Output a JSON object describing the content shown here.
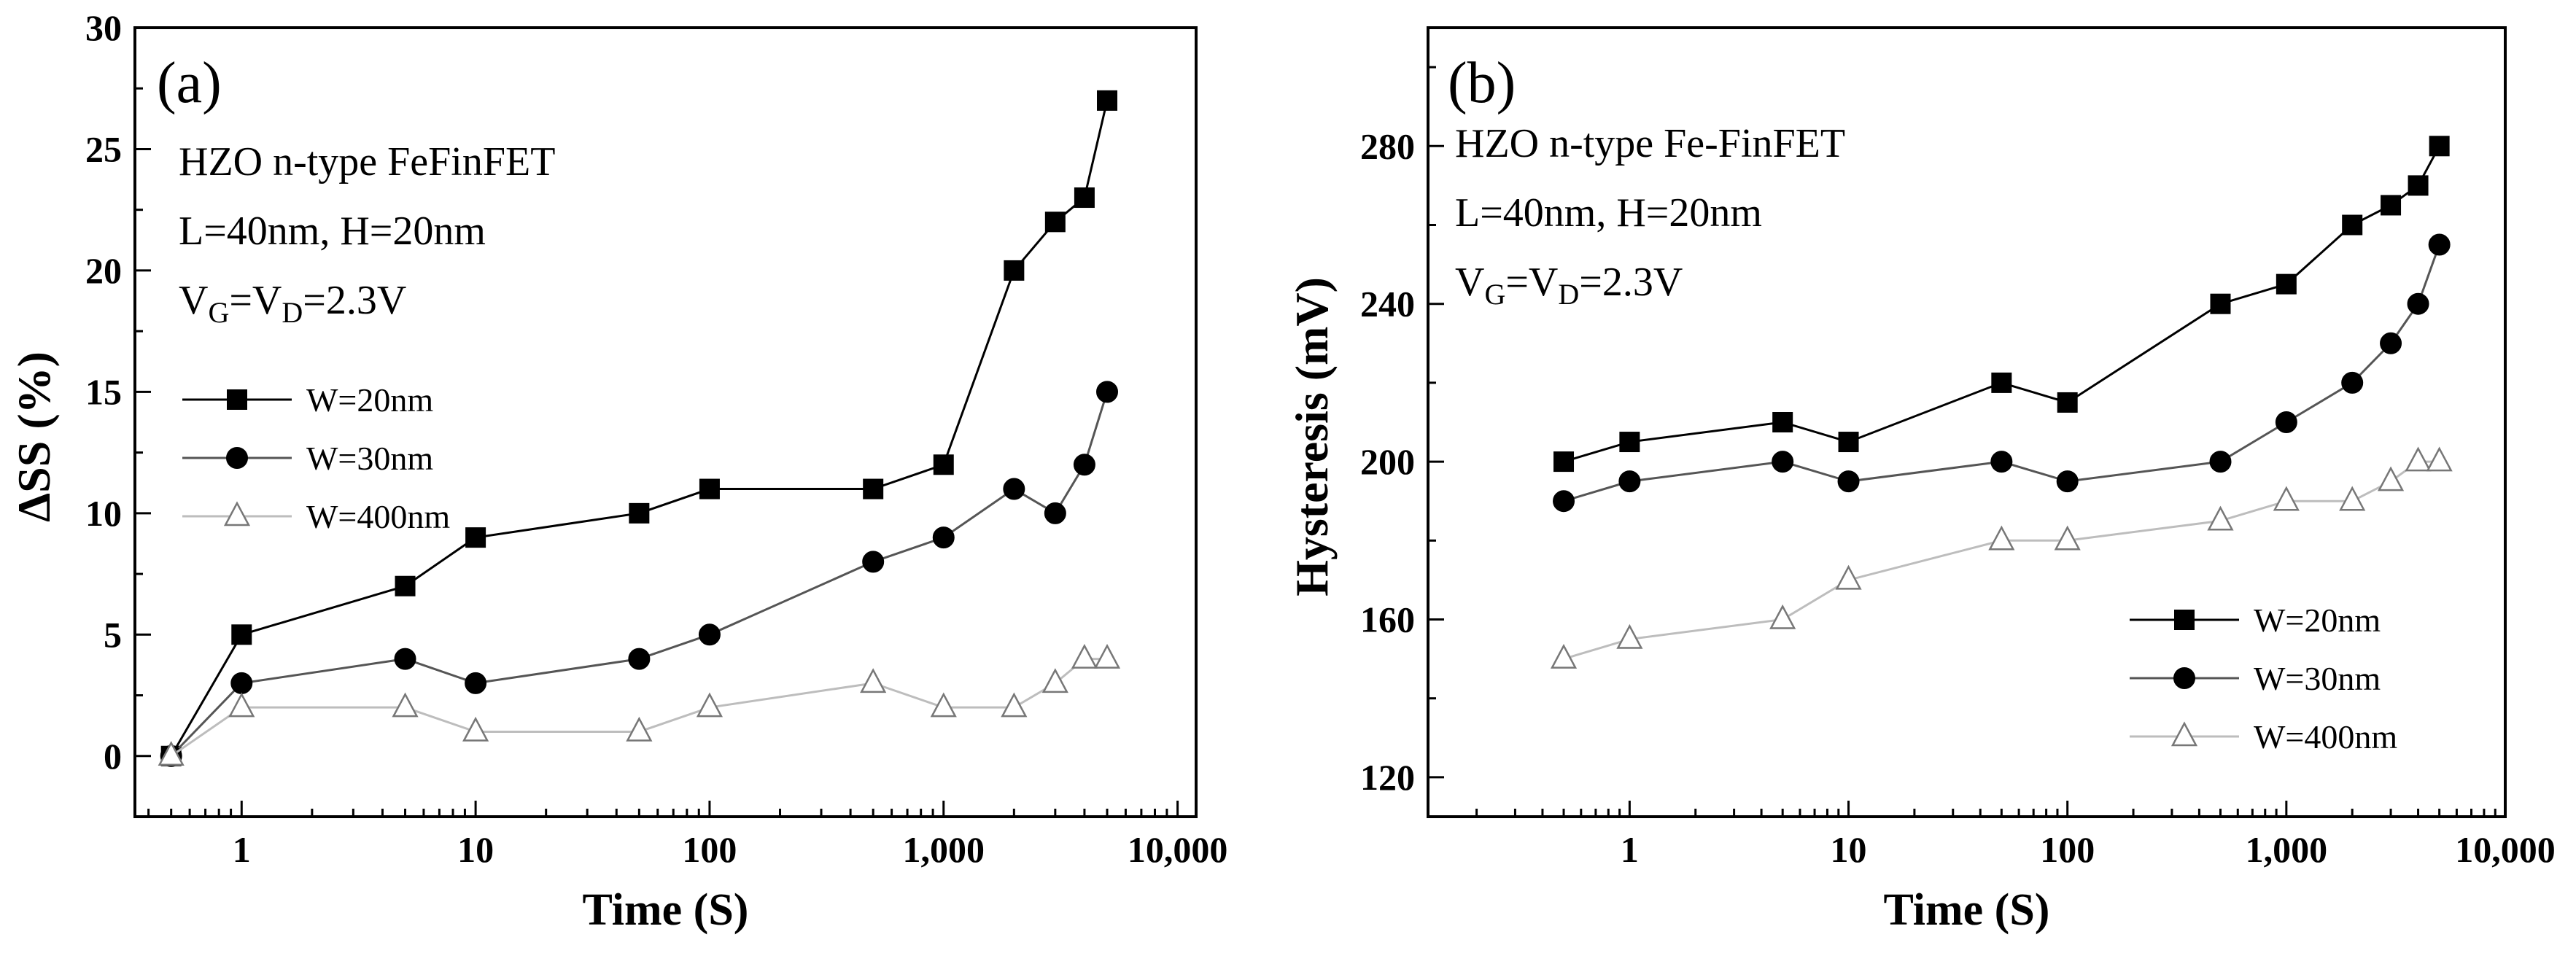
{
  "chart_data": [
    {
      "type": "line",
      "panel_label": "(a)",
      "annotation_lines": [
        {
          "main": "HZO n-type FeFinFET"
        },
        {
          "main": "L=40nm, H=20nm"
        },
        {
          "parts": [
            {
              "t": "V"
            },
            {
              "t": "G",
              "sub": true
            },
            {
              "t": "=V"
            },
            {
              "t": "D",
              "sub": true
            },
            {
              "t": "=2.3V"
            }
          ]
        }
      ],
      "xlabel": "Time (S)",
      "ylabel": "ΔSS  (%)",
      "x_scale": "log",
      "xlim": [
        0.35,
        12000
      ],
      "ylim": [
        -2.5,
        30
      ],
      "x_ticks": [
        1,
        10,
        100,
        1000,
        10000
      ],
      "x_tick_labels": [
        "1",
        "10",
        "100",
        "1,000",
        "10,000"
      ],
      "y_ticks": [
        0,
        5,
        10,
        15,
        20,
        25,
        30
      ],
      "y_tick_labels": [
        "0",
        "5",
        "10",
        "15",
        "20",
        "25",
        "30"
      ],
      "legend_position": "middle-left",
      "series": [
        {
          "name": "W=20nm",
          "marker": "square",
          "color": "#000000",
          "x": [
            0.5,
            1,
            5,
            10,
            50,
            100,
            500,
            1000,
            2000,
            3000,
            4000,
            5000
          ],
          "y": [
            0,
            5,
            7,
            9,
            10,
            11,
            11,
            12,
            20,
            22,
            23,
            27
          ]
        },
        {
          "name": "W=30nm",
          "marker": "circle",
          "color": "#444444",
          "x": [
            0.5,
            1,
            5,
            10,
            50,
            100,
            500,
            1000,
            2000,
            3000,
            4000,
            5000
          ],
          "y": [
            0,
            3,
            4,
            3,
            4,
            5,
            8,
            9,
            11,
            10,
            12,
            15
          ]
        },
        {
          "name": "W=400nm",
          "marker": "triangle-open",
          "color": "#b0b0b0",
          "x": [
            0.5,
            1,
            5,
            10,
            50,
            100,
            500,
            1000,
            2000,
            3000,
            4000,
            5000
          ],
          "y": [
            0,
            2,
            2,
            1,
            1,
            2,
            3,
            2,
            2,
            3,
            4,
            4
          ]
        }
      ]
    },
    {
      "type": "line",
      "panel_label": "(b)",
      "annotation_lines": [
        {
          "main": "HZO n-type Fe-FinFET"
        },
        {
          "main": "L=40nm, H=20nm"
        },
        {
          "parts": [
            {
              "t": "V"
            },
            {
              "t": "G",
              "sub": true
            },
            {
              "t": "=V"
            },
            {
              "t": "D",
              "sub": true
            },
            {
              "t": "=2.3V"
            }
          ]
        }
      ],
      "xlabel": "Time (S)",
      "ylabel": "Hysteresis (mV)",
      "x_scale": "log",
      "xlim": [
        0.12,
        10000
      ],
      "ylim": [
        110,
        310
      ],
      "x_ticks": [
        1,
        10,
        100,
        1000,
        10000
      ],
      "x_tick_labels": [
        "1",
        "10",
        "100",
        "1,000",
        "10,000"
      ],
      "y_ticks": [
        120,
        160,
        200,
        240,
        280
      ],
      "y_tick_labels": [
        "120",
        "160",
        "200",
        "240",
        "280"
      ],
      "legend_position": "bottom-right",
      "series": [
        {
          "name": "W=20nm",
          "marker": "square",
          "color": "#000000",
          "x": [
            0.5,
            1,
            5,
            10,
            50,
            100,
            500,
            1000,
            2000,
            3000,
            4000,
            5000
          ],
          "y": [
            200,
            205,
            210,
            205,
            220,
            215,
            240,
            245,
            260,
            265,
            270,
            280
          ]
        },
        {
          "name": "W=30nm",
          "marker": "circle",
          "color": "#444444",
          "x": [
            0.5,
            1,
            5,
            10,
            50,
            100,
            500,
            1000,
            2000,
            3000,
            4000,
            5000
          ],
          "y": [
            190,
            195,
            200,
            195,
            200,
            195,
            200,
            210,
            220,
            230,
            240,
            255
          ]
        },
        {
          "name": "W=400nm",
          "marker": "triangle-open",
          "color": "#b0b0b0",
          "x": [
            0.5,
            1,
            5,
            10,
            50,
            100,
            500,
            1000,
            2000,
            3000,
            4000,
            5000
          ],
          "y": [
            150,
            155,
            160,
            170,
            180,
            180,
            185,
            190,
            190,
            195,
            200,
            200
          ]
        }
      ]
    }
  ]
}
